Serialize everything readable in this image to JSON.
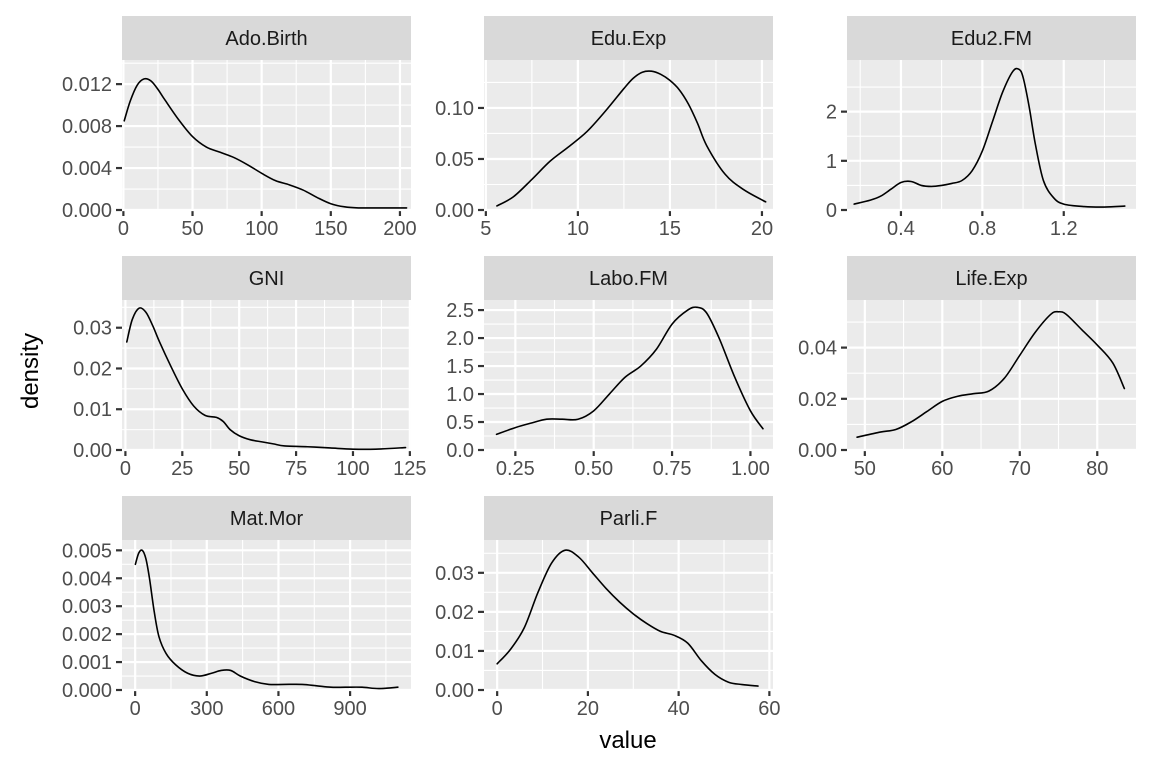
{
  "chart_data": {
    "type": "line",
    "xlabel": "value",
    "ylabel": "density",
    "grid": true,
    "facets": [
      {
        "name": "Ado.Birth",
        "xlim": [
          -1,
          208
        ],
        "ylim": [
          0,
          0.0143
        ],
        "xticks": [
          0,
          50,
          100,
          150,
          200
        ],
        "xtick_labels": [
          "0",
          "50",
          "100",
          "150",
          "200"
        ],
        "yticks": [
          0,
          0.004,
          0.008,
          0.012
        ],
        "ytick_labels": [
          "0.000",
          "0.004",
          "0.008",
          "0.012"
        ],
        "x": [
          0.6,
          5,
          10,
          15,
          20,
          25,
          30,
          40,
          50,
          60,
          70,
          80,
          90,
          100,
          110,
          120,
          130,
          140,
          150,
          160,
          170,
          180,
          190,
          204.8
        ],
        "y": [
          0.0085,
          0.0104,
          0.0119,
          0.0125,
          0.0123,
          0.0115,
          0.0105,
          0.0086,
          0.007,
          0.006,
          0.0055,
          0.005,
          0.0043,
          0.0035,
          0.0028,
          0.0024,
          0.0019,
          0.0012,
          0.0006,
          0.0003,
          0.0002,
          0.0002,
          0.0002,
          0.0002
        ]
      },
      {
        "name": "Edu.Exp",
        "xlim": [
          4.9,
          20.6
        ],
        "ylim": [
          0,
          0.147
        ],
        "xticks": [
          5,
          10,
          15,
          20
        ],
        "xtick_labels": [
          "5",
          "10",
          "15",
          "20"
        ],
        "yticks": [
          0,
          0.05,
          0.1
        ],
        "ytick_labels": [
          "0.00",
          "0.05",
          "0.10"
        ],
        "x": [
          5.6,
          6.5,
          7.5,
          8.5,
          9.5,
          10.5,
          11.5,
          12.5,
          13.0,
          13.5,
          14.0,
          14.5,
          15.0,
          15.5,
          16.0,
          16.5,
          17.0,
          18.0,
          19.0,
          20.2
        ],
        "y": [
          0.004,
          0.013,
          0.03,
          0.048,
          0.062,
          0.077,
          0.097,
          0.119,
          0.129,
          0.135,
          0.136,
          0.133,
          0.127,
          0.118,
          0.104,
          0.085,
          0.063,
          0.035,
          0.02,
          0.008
        ]
      },
      {
        "name": "Edu2.FM",
        "xlim": [
          0.135,
          1.555
        ],
        "ylim": [
          0,
          3.05
        ],
        "xticks": [
          0.4,
          0.8,
          1.2
        ],
        "xtick_labels": [
          "0.4",
          "0.8",
          "1.2"
        ],
        "yticks": [
          0,
          1,
          2
        ],
        "ytick_labels": [
          "0",
          "1",
          "2"
        ],
        "x": [
          0.17,
          0.25,
          0.3,
          0.35,
          0.4,
          0.45,
          0.5,
          0.55,
          0.6,
          0.65,
          0.7,
          0.75,
          0.8,
          0.85,
          0.9,
          0.95,
          0.98,
          1.0,
          1.03,
          1.06,
          1.1,
          1.15,
          1.2,
          1.3,
          1.4,
          1.5
        ],
        "y": [
          0.12,
          0.2,
          0.28,
          0.42,
          0.56,
          0.58,
          0.5,
          0.48,
          0.5,
          0.54,
          0.6,
          0.8,
          1.2,
          1.8,
          2.4,
          2.82,
          2.86,
          2.7,
          2.1,
          1.35,
          0.6,
          0.25,
          0.12,
          0.07,
          0.06,
          0.08
        ]
      },
      {
        "name": "GNI",
        "xlim": [
          -1.5,
          125.5
        ],
        "ylim": [
          0,
          0.0368
        ],
        "xticks": [
          0,
          25,
          50,
          75,
          100,
          125
        ],
        "xtick_labels": [
          "0",
          "25",
          "50",
          "75",
          "100",
          "125"
        ],
        "yticks": [
          0,
          0.01,
          0.02,
          0.03
        ],
        "ytick_labels": [
          "0.00",
          "0.01",
          "0.02",
          "0.03"
        ],
        "x": [
          0.6,
          3,
          6,
          9,
          12,
          15,
          20,
          25,
          30,
          35,
          40,
          43,
          46,
          50,
          55,
          60,
          65,
          70,
          80,
          90,
          100,
          110,
          123.1
        ],
        "y": [
          0.0265,
          0.032,
          0.0348,
          0.0338,
          0.0305,
          0.0265,
          0.0205,
          0.015,
          0.0108,
          0.0085,
          0.008,
          0.007,
          0.005,
          0.0035,
          0.0025,
          0.002,
          0.0015,
          0.001,
          0.0008,
          0.0005,
          0.0002,
          0.0002,
          0.0006
        ]
      },
      {
        "name": "Labo.FM",
        "xlim": [
          0.15,
          1.072
        ],
        "ylim": [
          0,
          2.68
        ],
        "xticks": [
          0.25,
          0.5,
          0.75,
          1.0
        ],
        "xtick_labels": [
          "0.25",
          "0.50",
          "0.75",
          "1.00"
        ],
        "yticks": [
          0,
          0.5,
          1,
          1.5,
          2,
          2.5
        ],
        "ytick_labels": [
          "0.0",
          "0.5",
          "1.0",
          "1.5",
          "2.0",
          "2.5"
        ],
        "x": [
          0.19,
          0.25,
          0.3,
          0.35,
          0.4,
          0.45,
          0.5,
          0.55,
          0.6,
          0.65,
          0.7,
          0.75,
          0.8,
          0.83,
          0.86,
          0.9,
          0.95,
          1.0,
          1.04
        ],
        "y": [
          0.28,
          0.4,
          0.48,
          0.55,
          0.55,
          0.55,
          0.7,
          1.0,
          1.3,
          1.5,
          1.8,
          2.25,
          2.5,
          2.55,
          2.45,
          2.0,
          1.3,
          0.7,
          0.38
        ]
      },
      {
        "name": "Life.Exp",
        "xlim": [
          47.7,
          85.0
        ],
        "ylim": [
          0,
          0.0586
        ],
        "xticks": [
          50,
          60,
          70,
          80
        ],
        "xtick_labels": [
          "50",
          "60",
          "70",
          "80"
        ],
        "yticks": [
          0,
          0.02,
          0.04
        ],
        "ytick_labels": [
          "0.00",
          "0.02",
          "0.04"
        ],
        "x": [
          49.0,
          52,
          54,
          56,
          58,
          60,
          62,
          64,
          66,
          68,
          70,
          72,
          74,
          75,
          76,
          78,
          80,
          82,
          83.5
        ],
        "y": [
          0.005,
          0.007,
          0.008,
          0.011,
          0.015,
          0.019,
          0.021,
          0.022,
          0.023,
          0.028,
          0.037,
          0.046,
          0.053,
          0.054,
          0.053,
          0.047,
          0.041,
          0.034,
          0.024
        ]
      },
      {
        "name": "Mat.Mor",
        "xlim": [
          -55,
          1155
        ],
        "ylim": [
          0,
          0.00537
        ],
        "xticks": [
          0,
          300,
          600,
          900
        ],
        "xtick_labels": [
          "0",
          "300",
          "600",
          "900"
        ],
        "yticks": [
          0,
          0.001,
          0.002,
          0.003,
          0.004,
          0.005
        ],
        "ytick_labels": [
          "0.000",
          "0.001",
          "0.002",
          "0.003",
          "0.004",
          "0.005"
        ],
        "x": [
          1,
          15,
          30,
          45,
          60,
          80,
          100,
          130,
          170,
          220,
          270,
          320,
          360,
          400,
          440,
          500,
          560,
          620,
          700,
          760,
          820,
          880,
          950,
          1020,
          1100
        ],
        "y": [
          0.0045,
          0.0049,
          0.005,
          0.0047,
          0.004,
          0.0028,
          0.0019,
          0.0013,
          0.0009,
          0.0006,
          0.0005,
          0.0006,
          0.0007,
          0.0007,
          0.0005,
          0.0003,
          0.0002,
          0.0002,
          0.0002,
          0.00015,
          0.0001,
          0.0001,
          0.0001,
          5e-05,
          0.0001
        ]
      },
      {
        "name": "Parli.F",
        "xlim": [
          -2.9,
          60.8
        ],
        "ylim": [
          0,
          0.0384
        ],
        "xticks": [
          0,
          20,
          40,
          60
        ],
        "xtick_labels": [
          "0",
          "20",
          "40",
          "60"
        ],
        "yticks": [
          0,
          0.01,
          0.02,
          0.03
        ],
        "ytick_labels": [
          "0.00",
          "0.01",
          "0.02",
          "0.03"
        ],
        "x": [
          0,
          3,
          6,
          9,
          12,
          15,
          18,
          21,
          24,
          27,
          30,
          33,
          36,
          39,
          42,
          45,
          48,
          51,
          54,
          57.5
        ],
        "y": [
          0.0067,
          0.0105,
          0.016,
          0.025,
          0.0325,
          0.0358,
          0.034,
          0.03,
          0.026,
          0.0225,
          0.0195,
          0.017,
          0.015,
          0.014,
          0.012,
          0.0075,
          0.004,
          0.002,
          0.0014,
          0.001
        ]
      }
    ]
  }
}
